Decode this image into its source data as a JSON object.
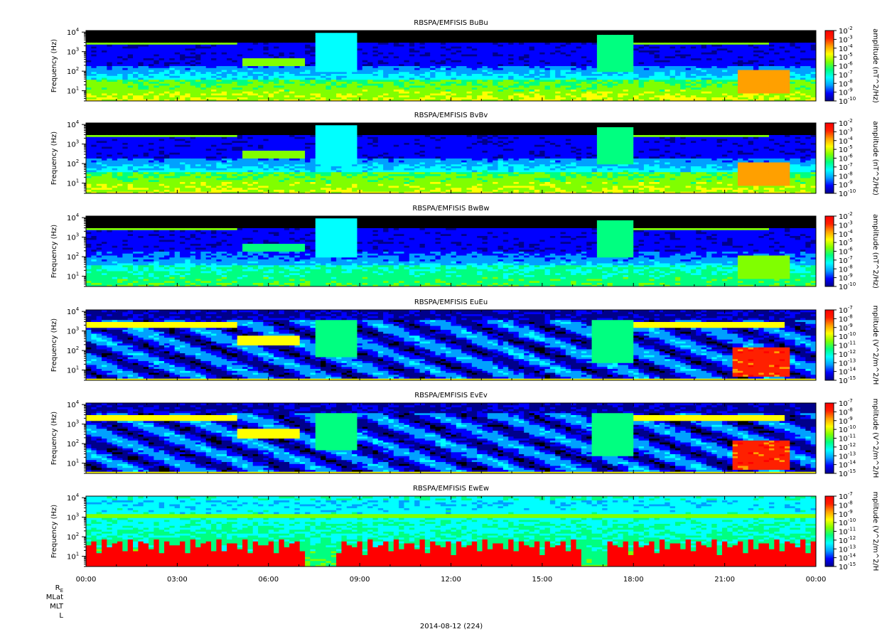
{
  "chart_data": {
    "type": "heatmap",
    "x_axis": {
      "tick_labels": [
        "00:00",
        "03:00",
        "06:00",
        "09:00",
        "12:00",
        "15:00",
        "18:00",
        "21:00",
        "00:00"
      ],
      "tick_hours": [
        0,
        3,
        6,
        9,
        12,
        15,
        18,
        21,
        24
      ],
      "date_label": "2014-08-12 (224)"
    },
    "ephemeris_labels": [
      "R",
      "MLat",
      "MLT",
      "L"
    ],
    "ephemeris_subscript": "E",
    "colormap": [
      "#00008b",
      "#0000ff",
      "#00a0ff",
      "#00ffff",
      "#00ff80",
      "#80ff00",
      "#ffff00",
      "#ffa000",
      "#ff2000",
      "#ff0000"
    ],
    "panels": [
      {
        "title": "RBSPA/EMFISIS  BuBu",
        "ylabel": "Frequency (Hz)",
        "yticks": [
          {
            "base": "10",
            "exp": "4"
          },
          {
            "base": "10",
            "exp": "3"
          },
          {
            "base": "10",
            "exp": "2"
          },
          {
            "base": "10",
            "exp": "1"
          }
        ],
        "ylim_hz": [
          3,
          12000
        ],
        "colorbar_label": "amplitude (nT^2/Hz)",
        "colorbar_ticks": [
          {
            "base": "10",
            "exp": "-2"
          },
          {
            "base": "10",
            "exp": "-3"
          },
          {
            "base": "10",
            "exp": "-4"
          },
          {
            "base": "10",
            "exp": "-5"
          },
          {
            "base": "10",
            "exp": "-6"
          },
          {
            "base": "10",
            "exp": "-7"
          },
          {
            "base": "10",
            "exp": "-8"
          },
          {
            "base": "10",
            "exp": "-9"
          },
          {
            "base": "10",
            "exp": "-10"
          }
        ],
        "colorbar_range": [
          -10,
          -2
        ],
        "kind": "B",
        "strength": 1.0
      },
      {
        "title": "RBSPA/EMFISIS  BvBv",
        "ylabel": "Frequency (Hz)",
        "yticks": [
          {
            "base": "10",
            "exp": "4"
          },
          {
            "base": "10",
            "exp": "3"
          },
          {
            "base": "10",
            "exp": "2"
          },
          {
            "base": "10",
            "exp": "1"
          }
        ],
        "ylim_hz": [
          3,
          12000
        ],
        "colorbar_label": "amplitude (nT^2/Hz)",
        "colorbar_ticks": [
          {
            "base": "10",
            "exp": "-2"
          },
          {
            "base": "10",
            "exp": "-3"
          },
          {
            "base": "10",
            "exp": "-4"
          },
          {
            "base": "10",
            "exp": "-5"
          },
          {
            "base": "10",
            "exp": "-6"
          },
          {
            "base": "10",
            "exp": "-7"
          },
          {
            "base": "10",
            "exp": "-8"
          },
          {
            "base": "10",
            "exp": "-9"
          },
          {
            "base": "10",
            "exp": "-10"
          }
        ],
        "colorbar_range": [
          -10,
          -2
        ],
        "kind": "B",
        "strength": 1.0
      },
      {
        "title": "RBSPA/EMFISIS  BwBw",
        "ylabel": "Frequency (Hz)",
        "yticks": [
          {
            "base": "10",
            "exp": "4"
          },
          {
            "base": "10",
            "exp": "3"
          },
          {
            "base": "10",
            "exp": "2"
          },
          {
            "base": "10",
            "exp": "1"
          }
        ],
        "ylim_hz": [
          3,
          12000
        ],
        "colorbar_label": "amplitude (nT^2/Hz)",
        "colorbar_ticks": [
          {
            "base": "10",
            "exp": "-2"
          },
          {
            "base": "10",
            "exp": "-3"
          },
          {
            "base": "10",
            "exp": "-4"
          },
          {
            "base": "10",
            "exp": "-5"
          },
          {
            "base": "10",
            "exp": "-6"
          },
          {
            "base": "10",
            "exp": "-7"
          },
          {
            "base": "10",
            "exp": "-8"
          },
          {
            "base": "10",
            "exp": "-9"
          },
          {
            "base": "10",
            "exp": "-10"
          }
        ],
        "colorbar_range": [
          -10,
          -2
        ],
        "kind": "B",
        "strength": 0.8
      },
      {
        "title": "RBSPA/EMFISIS  EuEu",
        "ylabel": "Frequency (Hz)",
        "yticks": [
          {
            "base": "10",
            "exp": "4"
          },
          {
            "base": "10",
            "exp": "3"
          },
          {
            "base": "10",
            "exp": "2"
          },
          {
            "base": "10",
            "exp": "1"
          }
        ],
        "ylim_hz": [
          3,
          12000
        ],
        "colorbar_label": "mplitude (V^2/m^2/H",
        "colorbar_ticks": [
          {
            "base": "10",
            "exp": "-7"
          },
          {
            "base": "10",
            "exp": "-8"
          },
          {
            "base": "10",
            "exp": "-9"
          },
          {
            "base": "10",
            "exp": "-10"
          },
          {
            "base": "10",
            "exp": "-11"
          },
          {
            "base": "10",
            "exp": "-12"
          },
          {
            "base": "10",
            "exp": "-13"
          },
          {
            "base": "10",
            "exp": "-14"
          },
          {
            "base": "10",
            "exp": "-15"
          }
        ],
        "colorbar_range": [
          -15,
          -7
        ],
        "kind": "E",
        "strength": 1.0
      },
      {
        "title": "RBSPA/EMFISIS  EvEv",
        "ylabel": "Frequency (Hz)",
        "yticks": [
          {
            "base": "10",
            "exp": "4"
          },
          {
            "base": "10",
            "exp": "3"
          },
          {
            "base": "10",
            "exp": "2"
          },
          {
            "base": "10",
            "exp": "1"
          }
        ],
        "ylim_hz": [
          3,
          12000
        ],
        "colorbar_label": "mplitude (V^2/m^2/H",
        "colorbar_ticks": [
          {
            "base": "10",
            "exp": "-7"
          },
          {
            "base": "10",
            "exp": "-8"
          },
          {
            "base": "10",
            "exp": "-9"
          },
          {
            "base": "10",
            "exp": "-10"
          },
          {
            "base": "10",
            "exp": "-11"
          },
          {
            "base": "10",
            "exp": "-12"
          },
          {
            "base": "10",
            "exp": "-13"
          },
          {
            "base": "10",
            "exp": "-14"
          },
          {
            "base": "10",
            "exp": "-15"
          }
        ],
        "colorbar_range": [
          -15,
          -7
        ],
        "kind": "E",
        "strength": 1.0
      },
      {
        "title": "RBSPA/EMFISIS  EwEw",
        "ylabel": "Frequency (Hz)",
        "yticks": [
          {
            "base": "10",
            "exp": "4"
          },
          {
            "base": "10",
            "exp": "3"
          },
          {
            "base": "10",
            "exp": "2"
          },
          {
            "base": "10",
            "exp": "1"
          }
        ],
        "ylim_hz": [
          3,
          12000
        ],
        "colorbar_label": "mplitude (V^2/m^2/H",
        "colorbar_ticks": [
          {
            "base": "10",
            "exp": "-7"
          },
          {
            "base": "10",
            "exp": "-8"
          },
          {
            "base": "10",
            "exp": "-9"
          },
          {
            "base": "10",
            "exp": "-10"
          },
          {
            "base": "10",
            "exp": "-11"
          },
          {
            "base": "10",
            "exp": "-12"
          },
          {
            "base": "10",
            "exp": "-13"
          },
          {
            "base": "10",
            "exp": "-14"
          },
          {
            "base": "10",
            "exp": "-15"
          }
        ],
        "colorbar_range": [
          -15,
          -7
        ],
        "kind": "Ew",
        "strength": 1.0
      }
    ]
  }
}
